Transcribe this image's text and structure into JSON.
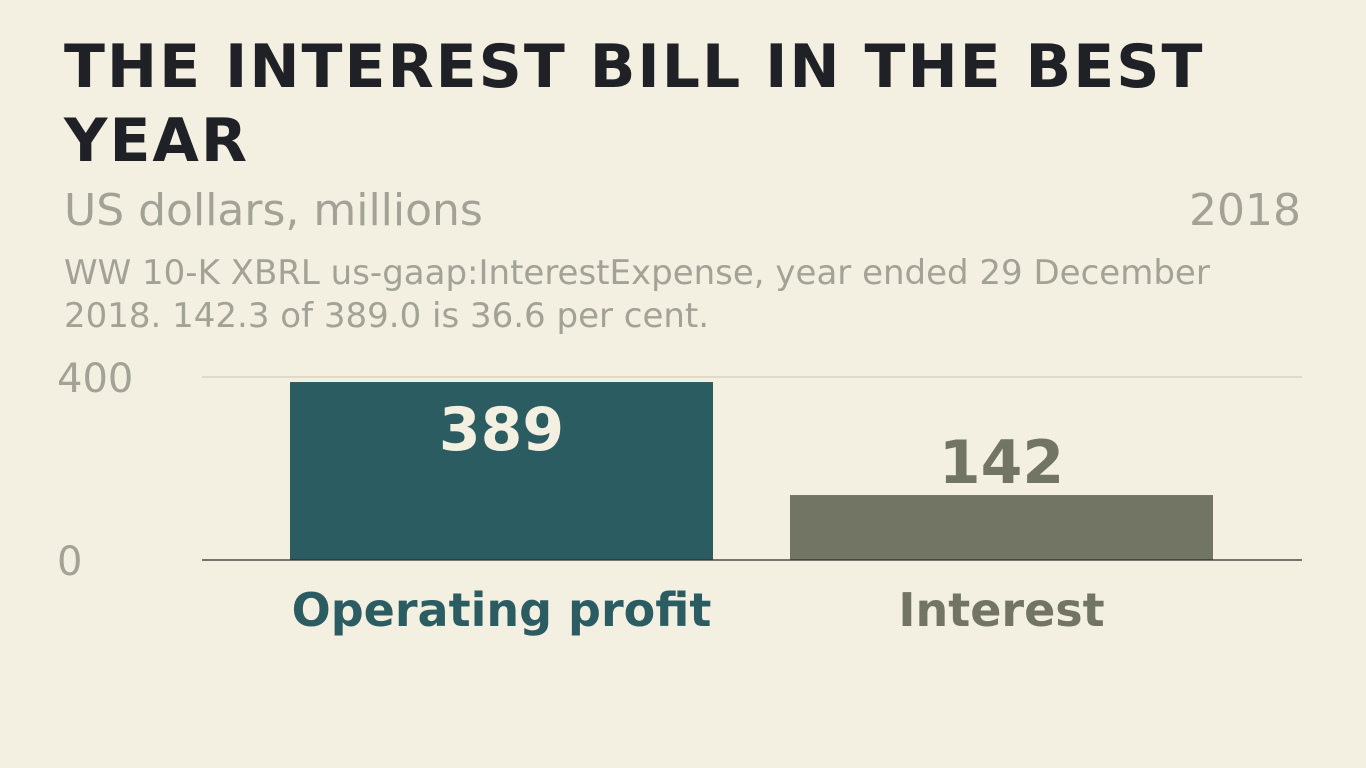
{
  "title": "THE INTEREST BILL IN THE BEST YEAR",
  "subtitle": "US dollars, millions",
  "year": "2018",
  "note": "WW 10-K XBRL us-gaap:InterestExpense, year ended 29 December 2018. 142.3 of 389.0 is 36.6 per cent.",
  "colors": {
    "background": "#f4f0e1",
    "operating_profit": "#2a5c62",
    "interest": "#727464",
    "axis_text": "#a3a296",
    "title": "#1f2126",
    "value_label_inside": "#f4f0e1"
  },
  "chart_data": {
    "type": "bar",
    "categories": [
      "Operating profit",
      "Interest"
    ],
    "values": [
      389,
      142
    ],
    "value_labels": [
      "389",
      "142"
    ],
    "yticks": [
      0,
      400
    ],
    "ytick_labels": [
      "0",
      "400"
    ],
    "ylim": [
      0,
      400
    ],
    "grid": true,
    "xlabel": "",
    "ylabel": ""
  }
}
